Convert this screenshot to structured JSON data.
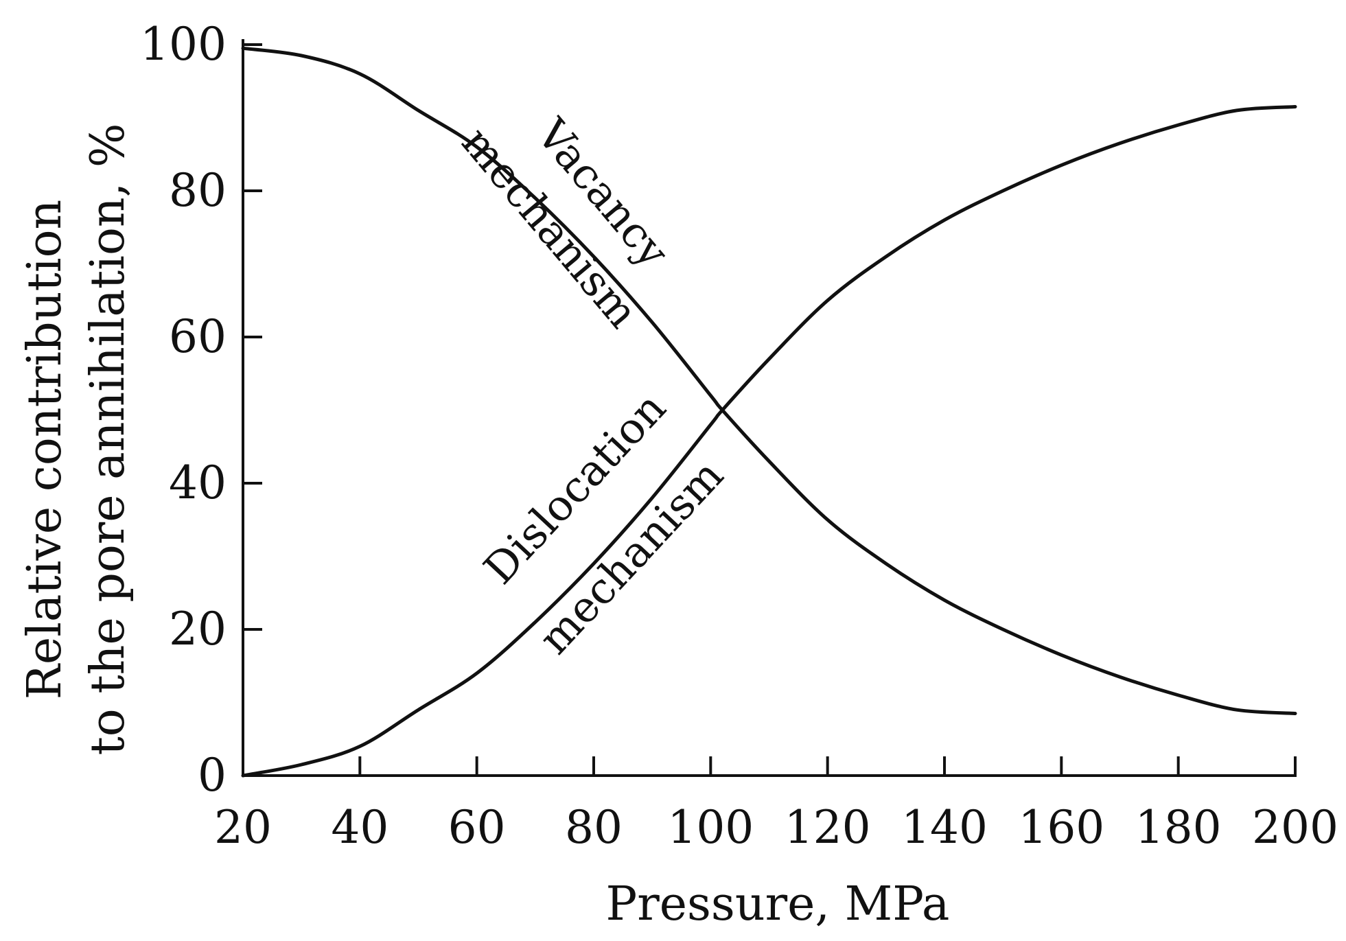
{
  "chart_data": {
    "type": "line",
    "title": "",
    "xlabel": "Pressure, MPa",
    "ylabel_line1": "Relative contribution",
    "ylabel_line2": "to the pore annihilation, %",
    "xlim": [
      20,
      200
    ],
    "ylim": [
      0,
      100
    ],
    "xticks": [
      20,
      40,
      60,
      80,
      100,
      120,
      140,
      160,
      180,
      200
    ],
    "yticks": [
      0,
      20,
      40,
      60,
      80,
      100
    ],
    "grid": false,
    "legend": "none",
    "series": [
      {
        "name": "Vacancy mechanism",
        "label_line1": "Vacancy",
        "label_line2": "mechanism",
        "x": [
          20,
          30,
          40,
          50,
          60,
          70,
          80,
          90,
          100,
          102,
          110,
          120,
          130,
          140,
          150,
          160,
          170,
          180,
          190,
          200
        ],
        "y": [
          99.5,
          98.5,
          96,
          91,
          86,
          79,
          71,
          62,
          52,
          50,
          43,
          35,
          29,
          24,
          20,
          16.5,
          13.5,
          11,
          9,
          8.5
        ]
      },
      {
        "name": "Dislocation mechanism",
        "label_line1": "Dislocation",
        "label_line2": "mechanism",
        "x": [
          20,
          30,
          40,
          50,
          60,
          70,
          80,
          90,
          100,
          102,
          110,
          120,
          130,
          140,
          150,
          160,
          170,
          180,
          190,
          200
        ],
        "y": [
          0,
          1.5,
          4,
          9,
          14,
          21,
          29,
          38,
          48,
          50,
          57,
          65,
          71,
          76,
          80,
          83.5,
          86.5,
          89,
          91,
          91.5
        ]
      }
    ]
  }
}
